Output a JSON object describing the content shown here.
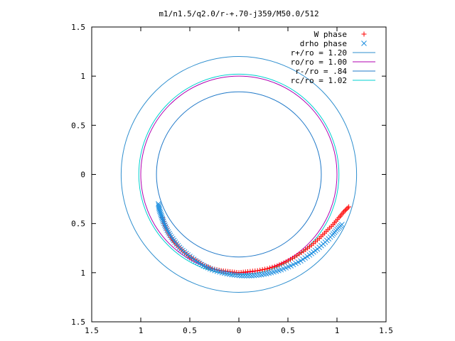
{
  "chart_data": {
    "type": "scatter",
    "title": "m1/n1.5/q2.0/r-+.70-j359/M50.0/512",
    "xlim": [
      -1.5,
      1.5
    ],
    "ylim": [
      -1.5,
      1.5
    ],
    "x_ticks": [
      {
        "value": -1.5,
        "label": "1.5"
      },
      {
        "value": -1.0,
        "label": "1"
      },
      {
        "value": -0.5,
        "label": "0.5"
      },
      {
        "value": 0,
        "label": "0"
      },
      {
        "value": 0.5,
        "label": "0.5"
      },
      {
        "value": 1.0,
        "label": "1"
      },
      {
        "value": 1.5,
        "label": "1.5"
      }
    ],
    "y_ticks": [
      {
        "value": 1.5,
        "label": "1.5"
      },
      {
        "value": 1.0,
        "label": "1"
      },
      {
        "value": 0.5,
        "label": "0.5"
      },
      {
        "value": 0,
        "label": "0"
      },
      {
        "value": -0.5,
        "label": "0.5"
      },
      {
        "value": -1.0,
        "label": "1"
      },
      {
        "value": -1.5,
        "label": "1.5"
      }
    ],
    "legend_position": "top-right",
    "circles": [
      {
        "name": "r+/ro = 1.20",
        "radius": 1.2,
        "color": "#2f8fcf"
      },
      {
        "name": "ro/ro = 1.00",
        "radius": 1.0,
        "color": "#b000b0"
      },
      {
        "name": "r-/ro = .84",
        "radius": 0.84,
        "color": "#1f78c8"
      },
      {
        "name": "rc/ro = 1.02",
        "radius": 1.02,
        "color": "#00d0d0"
      }
    ],
    "series": [
      {
        "name": "W phase",
        "marker": "plus",
        "color": "#ff0000",
        "points": [
          [
            -0.78,
            -0.44
          ],
          [
            -0.75,
            -0.52
          ],
          [
            -0.72,
            -0.59
          ],
          [
            -0.68,
            -0.66
          ],
          [
            -0.63,
            -0.72
          ],
          [
            -0.57,
            -0.78
          ],
          [
            -0.5,
            -0.84
          ],
          [
            -0.43,
            -0.88
          ],
          [
            -0.35,
            -0.93
          ],
          [
            -0.27,
            -0.96
          ],
          [
            -0.18,
            -0.98
          ],
          [
            -0.09,
            -0.99
          ],
          [
            0.0,
            -1.0
          ],
          [
            0.09,
            -0.99
          ],
          [
            0.19,
            -0.98
          ],
          [
            0.29,
            -0.96
          ],
          [
            0.39,
            -0.93
          ],
          [
            0.48,
            -0.89
          ],
          [
            0.57,
            -0.84
          ],
          [
            0.66,
            -0.78
          ],
          [
            0.74,
            -0.72
          ],
          [
            0.82,
            -0.65
          ],
          [
            0.89,
            -0.58
          ],
          [
            0.96,
            -0.51
          ],
          [
            1.02,
            -0.44
          ],
          [
            1.07,
            -0.38
          ],
          [
            1.12,
            -0.33
          ]
        ]
      },
      {
        "name": "drho phase",
        "marker": "cross",
        "color": "#1f8fe0",
        "points": [
          [
            -0.82,
            -0.3
          ],
          [
            -0.81,
            -0.36
          ],
          [
            -0.79,
            -0.42
          ],
          [
            -0.77,
            -0.48
          ],
          [
            -0.74,
            -0.55
          ],
          [
            -0.7,
            -0.62
          ],
          [
            -0.65,
            -0.69
          ],
          [
            -0.59,
            -0.76
          ],
          [
            -0.52,
            -0.82
          ],
          [
            -0.44,
            -0.88
          ],
          [
            -0.36,
            -0.93
          ],
          [
            -0.27,
            -0.97
          ],
          [
            -0.17,
            -1.0
          ],
          [
            -0.07,
            -1.02
          ],
          [
            0.03,
            -1.03
          ],
          [
            0.13,
            -1.03
          ],
          [
            0.23,
            -1.02
          ],
          [
            0.33,
            -1.0
          ],
          [
            0.43,
            -0.97
          ],
          [
            0.53,
            -0.93
          ],
          [
            0.63,
            -0.88
          ],
          [
            0.72,
            -0.82
          ],
          [
            0.8,
            -0.76
          ],
          [
            0.88,
            -0.69
          ],
          [
            0.95,
            -0.62
          ],
          [
            1.0,
            -0.56
          ],
          [
            1.05,
            -0.51
          ]
        ]
      }
    ]
  }
}
